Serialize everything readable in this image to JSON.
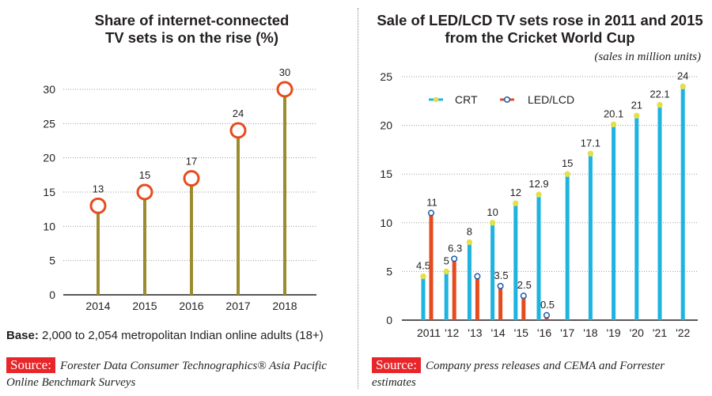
{
  "left_chart": {
    "title_line1": "Share of internet-connected",
    "title_line2": "TV sets is on the rise (%)"
  },
  "right_chart": {
    "title_line1": "Sale of LED/LCD TV sets rose in 2011 and 2015",
    "title_line2": "from the Cricket World Cup",
    "subtitle": "(sales in million units)"
  },
  "base_note": {
    "label": "Base:",
    "text": "2,000 to 2,054 metropolitan Indian online adults (18+)"
  },
  "left_source": {
    "badge": "Source:",
    "text": "Forester Data Consumer Technographics® Asia Pacific Online Benchmark Surveys"
  },
  "right_source": {
    "badge": "Source:",
    "text": "Company press releases and CEMA and Forrester estimates"
  },
  "colors": {
    "stem": "#9b8c2e",
    "circle": "#e64b1e",
    "crt": "#1fb3e0",
    "led": "#e64b1e",
    "crt_marker": "#e4e049",
    "led_marker": "#1e5aa8"
  },
  "chart_data": [
    {
      "type": "lollipop",
      "title": "Share of internet-connected TV sets is on the rise (%)",
      "categories": [
        "2014",
        "2015",
        "2016",
        "2017",
        "2018"
      ],
      "values": [
        13,
        15,
        17,
        24,
        30
      ],
      "ylim": [
        0,
        30
      ],
      "yticks": [
        0,
        5,
        10,
        15,
        20,
        25,
        30
      ],
      "grid": true
    },
    {
      "type": "bar",
      "title": "Sale of LED/LCD TV sets rose in 2011 and 2015 from the Cricket World Cup",
      "ylabel": "sales in million units",
      "categories": [
        "2011",
        "'12",
        "'13",
        "'14",
        "'15",
        "'16",
        "'17",
        "'18",
        "'19",
        "'20",
        "'21",
        "'22"
      ],
      "ylim": [
        0,
        25
      ],
      "yticks": [
        0,
        5,
        10,
        15,
        20,
        25
      ],
      "grid": true,
      "legend_position": "top-left",
      "series": [
        {
          "name": "CRT",
          "values": [
            4.5,
            5,
            8,
            10,
            12,
            12.9,
            15,
            17.1,
            20.1,
            21,
            22.1,
            24
          ],
          "labels": [
            "4.5",
            "5",
            "8",
            "10",
            "12",
            "12.9",
            "15",
            "17.1",
            "20.1",
            "21",
            "22.1",
            "24"
          ]
        },
        {
          "name": "LED/LCD",
          "values": [
            11,
            6.3,
            4.5,
            3.5,
            2.5,
            0.5,
            null,
            null,
            null,
            null,
            null,
            null
          ],
          "labels": [
            "11",
            "6.3",
            null,
            "3.5",
            "2.5",
            "0.5",
            null,
            null,
            null,
            null,
            null,
            null
          ]
        }
      ]
    }
  ]
}
